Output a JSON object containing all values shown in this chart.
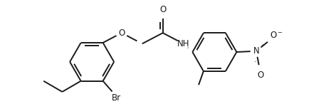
{
  "background_color": "#ffffff",
  "line_color": "#1a1a1a",
  "line_width": 1.4,
  "font_size": 8.5,
  "figsize": [
    4.65,
    1.53
  ],
  "dpi": 100,
  "xlim": [
    -0.3,
    4.8
  ],
  "ylim": [
    -1.1,
    1.1
  ]
}
